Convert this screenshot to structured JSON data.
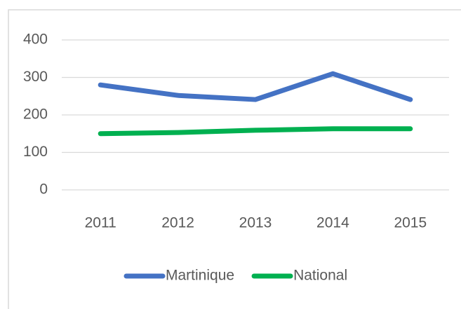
{
  "chart_data": {
    "type": "line",
    "categories": [
      "2011",
      "2012",
      "2013",
      "2014",
      "2015"
    ],
    "series": [
      {
        "name": "Martinique",
        "color": "#4472c4",
        "values": [
          280,
          252,
          241,
          310,
          241
        ]
      },
      {
        "name": "National",
        "color": "#00b050",
        "values": [
          150,
          153,
          159,
          163,
          163
        ]
      }
    ],
    "ylim": [
      0,
      400
    ],
    "yticks": [
      0,
      100,
      200,
      300,
      400
    ],
    "grid": true,
    "legend": "bottom"
  }
}
